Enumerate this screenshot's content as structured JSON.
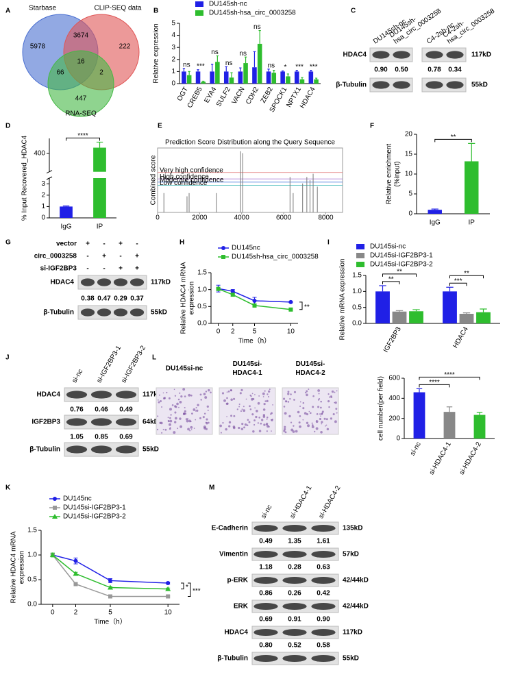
{
  "panels": [
    {
      "type": "venn",
      "label": "A",
      "sets": [
        {
          "name": "Starbase",
          "color": "#4a6fd1"
        },
        {
          "name": "CLIP-SEQ data",
          "color": "#e05555"
        },
        {
          "name": "RNA-SEQ",
          "color": "#44b844"
        }
      ],
      "values": [
        5978,
        3674,
        222,
        66,
        16,
        2,
        447
      ]
    },
    {
      "type": "bar",
      "label": "B",
      "ylabel": "Relative expression",
      "categories": [
        "OGT",
        "CREB5",
        "EYA4",
        "SULF2",
        "VACN",
        "CDH2",
        "ZEB2",
        "SPOCK1",
        "NPTX1",
        "HDAC4"
      ],
      "ylim": [
        0,
        5
      ],
      "yticks": [
        0,
        1,
        2,
        3,
        4,
        5
      ],
      "series": [
        {
          "name": "DU145sh-nc",
          "color": "#2020e6",
          "values": [
            1,
            1,
            1,
            1,
            1,
            1.35,
            1,
            1,
            1,
            1
          ],
          "errors": [
            0.25,
            0.15,
            0.6,
            0.4,
            0.3,
            1.3,
            0.2,
            0.05,
            0.1,
            0.1
          ]
        },
        {
          "name": "DU145sh-hsa_circ_0003258",
          "color": "#2ebd2e",
          "values": [
            0.7,
            0.15,
            1.8,
            0.5,
            1.7,
            3.3,
            0.9,
            0.6,
            0.35,
            0.35
          ],
          "errors": [
            0.3,
            0.05,
            0.5,
            0.4,
            0.5,
            1.1,
            0.2,
            0.2,
            0.15,
            0.1
          ]
        }
      ],
      "sig": [
        "ns",
        "***",
        "ns",
        "ns",
        "ns",
        "ns",
        "ns",
        "*",
        "***",
        "***"
      ]
    },
    {
      "type": "blot",
      "label": "C",
      "columns": [
        [
          "DU145sh-nc"
        ],
        [
          "DU145sh-",
          "hsa_circ_0003258"
        ],
        [
          "C4-2sh-nc"
        ],
        [
          "C4-2sh-",
          "hsa_circ_0003258"
        ]
      ],
      "rows": [
        {
          "name": "HDAC4",
          "values": [
            "0.90",
            "0.50",
            "0.78",
            "0.34"
          ],
          "size": "117kD"
        },
        {
          "name": "β-Tubulin",
          "size": "55kD"
        }
      ]
    },
    {
      "type": "bar",
      "label": "D",
      "ylabel": "% Input Recovered_HDAC4",
      "categories": [
        "IgG",
        "IP"
      ],
      "values": [
        1,
        430
      ],
      "errors": [
        0.05,
        30
      ],
      "colors": [
        "#2020e6",
        "#2ebd2e"
      ],
      "ylim": [
        0,
        480
      ],
      "break": [
        3.5,
        300
      ],
      "yticks": [
        0,
        1,
        2,
        3,
        400
      ],
      "sig": [
        "****"
      ]
    },
    {
      "type": "spikes",
      "label": "E",
      "title": "Prediction Score Distribution along the Query Sequence",
      "ylabel": "Combined score",
      "xlim": [
        0,
        8800
      ],
      "ylim": [
        0,
        1
      ],
      "xticks": [
        0,
        2000,
        4000,
        6000,
        8000
      ],
      "x": [
        300,
        1400,
        1500,
        2800,
        3950,
        4050,
        6300,
        6450,
        6900,
        7100,
        7250,
        7400,
        7600
      ],
      "values": [
        0.3,
        0.25,
        0.3,
        0.3,
        0.95,
        0.92,
        0.55,
        0.3,
        0.45,
        0.55,
        0.5,
        0.6,
        0.4
      ],
      "thresholds": [
        {
          "name": "Very high confidence",
          "color": "#e07070",
          "value": 0.62
        },
        {
          "name": "High confidence",
          "color": "#a070d0",
          "value": 0.52
        },
        {
          "name": "Moderate confidence",
          "color": "#5080e0",
          "value": 0.47
        },
        {
          "name": "Low confidence",
          "color": "#40b8b8",
          "value": 0.42
        }
      ]
    },
    {
      "type": "bar",
      "label": "F",
      "ylabel": [
        "Relative enrichment",
        "(%input)"
      ],
      "categories": [
        "IgG",
        "IP"
      ],
      "values": [
        1,
        13.2
      ],
      "errors": [
        0.2,
        4.5
      ],
      "colors": [
        "#2020e6",
        "#2ebd2e"
      ],
      "ylim": [
        0,
        20
      ],
      "yticks": [
        0,
        5,
        10,
        15,
        20
      ],
      "sig": [
        "**"
      ]
    },
    {
      "type": "blot",
      "label": "G",
      "conditions": [
        {
          "name": "vector",
          "signs": [
            "+",
            "-",
            "+",
            "-"
          ]
        },
        {
          "name": "circ_0003258",
          "signs": [
            "-",
            "+",
            "-",
            "+"
          ]
        },
        {
          "name": "si-IGF2BP3",
          "signs": [
            "-",
            "-",
            "+",
            "+"
          ]
        }
      ],
      "rows": [
        {
          "name": "HDAC4",
          "values": [
            "0.38",
            "0.47",
            "0.29",
            "0.37"
          ],
          "size": "117kD"
        },
        {
          "name": "β-Tubulin",
          "size": "55kD"
        }
      ]
    },
    {
      "type": "line",
      "label": "H",
      "ylabel": [
        "Relative HDAC4 mRNA",
        "expression"
      ],
      "xlabel": "Time（h）",
      "x": [
        0,
        2,
        5,
        10
      ],
      "xlim": [
        -1,
        11
      ],
      "xticks": [
        0,
        2,
        5,
        10
      ],
      "ylim": [
        0,
        1.5
      ],
      "yticks": [
        {
          "value": 0,
          "label": "0.0"
        },
        {
          "value": 0.5,
          "label": "0.5"
        },
        {
          "value": 1,
          "label": "1.0"
        },
        {
          "value": 1.5,
          "label": "1.5"
        }
      ],
      "series": [
        {
          "name": "DU145nc",
          "color": "#2020e6",
          "marker": "circle",
          "values": [
            1.03,
            0.95,
            0.67,
            0.63
          ],
          "errors": [
            0.1,
            0.05,
            0.1,
            0.02
          ]
        },
        {
          "name": "DU145sh-hsa_circ_0003258",
          "color": "#2ebd2e",
          "marker": "square",
          "values": [
            1.02,
            0.85,
            0.53,
            0.41
          ],
          "errors": [
            0.05,
            0.05,
            0.05,
            0.03
          ]
        }
      ],
      "sig": [
        "**"
      ]
    },
    {
      "type": "bar",
      "label": "I",
      "ylabel": "Relative mRNA expression",
      "categories": [
        "IGF2BP3",
        "HDAC4"
      ],
      "ylim": [
        0,
        1.5
      ],
      "yticks": [
        {
          "value": 0,
          "label": "0.0"
        },
        {
          "value": 0.5,
          "label": "0.5"
        },
        {
          "value": 1,
          "label": "1.0"
        },
        {
          "value": 1.5,
          "label": "1.5"
        }
      ],
      "series": [
        {
          "name": "DU145si-nc",
          "color": "#2020e6",
          "values": [
            1.0,
            1.0
          ],
          "errors": [
            0.18,
            0.13
          ]
        },
        {
          "name": "DU145si-IGF2BP3-1",
          "color": "#888888",
          "values": [
            0.37,
            0.3
          ],
          "errors": [
            0.03,
            0.03
          ]
        },
        {
          "name": "DU145si-IGF2BP3-2",
          "color": "#2ebd2e",
          "values": [
            0.38,
            0.35
          ],
          "errors": [
            0.05,
            0.1
          ]
        }
      ],
      "sig": [
        "**",
        "**",
        "***",
        "**"
      ]
    },
    {
      "type": "blot",
      "label": "J",
      "columns": [
        "si-nc",
        "si-IGF2BP3-1",
        "si-IGF2BP3-2"
      ],
      "rows": [
        {
          "name": "HDAC4",
          "values": [
            "0.76",
            "0.46",
            "0.49"
          ],
          "size": "117kD"
        },
        {
          "name": "IGF2BP3",
          "values": [
            "1.05",
            "0.85",
            "0.69"
          ],
          "size": "64kD"
        },
        {
          "name": "β-Tubulin",
          "size": "55kD"
        }
      ]
    },
    {
      "type": "bar",
      "label": "L",
      "images": [
        [
          "DU145si-nc"
        ],
        [
          "DU145si-",
          "HDAC4-1"
        ],
        [
          "DU145si-",
          "HDAC4-2"
        ]
      ],
      "ylabel": "cell number(per field)",
      "categories": [
        "si-nc",
        "si-HDAC4-1",
        "si-HDAC4-2"
      ],
      "values": [
        460,
        265,
        235
      ],
      "errors": [
        35,
        50,
        25
      ],
      "colors": [
        "#2020e6",
        "#888888",
        "#2ebd2e"
      ],
      "ylim": [
        0,
        600
      ],
      "yticks": [
        0,
        200,
        400,
        600
      ],
      "sig": [
        "****",
        "****"
      ]
    },
    {
      "type": "line",
      "label": "K",
      "ylabel": [
        "Relative HDAC4 mRNA",
        "expression"
      ],
      "xlabel": "Time（h）",
      "x": [
        0,
        2,
        5,
        10
      ],
      "xlim": [
        -1,
        11
      ],
      "xticks": [
        0,
        2,
        5,
        10
      ],
      "ylim": [
        0,
        1.5
      ],
      "yticks": [
        {
          "value": 0,
          "label": "0.0"
        },
        {
          "value": 0.5,
          "label": "0.5"
        },
        {
          "value": 1,
          "label": "1.0"
        },
        {
          "value": 1.5,
          "label": "1.5"
        }
      ],
      "series": [
        {
          "name": "DU145nc",
          "color": "#2020e6",
          "marker": "circle",
          "values": [
            1.0,
            0.88,
            0.48,
            0.43
          ],
          "errors": [
            0.03,
            0.06,
            0.04,
            0.02
          ]
        },
        {
          "name": "DU145si-IGF2BP3-1",
          "color": "#999999",
          "marker": "square",
          "values": [
            1.0,
            0.41,
            0.16,
            0.16
          ],
          "errors": [
            0.03,
            0.02,
            0.02,
            0.01
          ]
        },
        {
          "name": "DU145si-IGF2BP3-2",
          "color": "#2ebd2e",
          "marker": "triangle",
          "values": [
            1.0,
            0.62,
            0.34,
            0.31
          ],
          "errors": [
            0.04,
            0.03,
            0.02,
            0.02
          ]
        }
      ],
      "sig": [
        "*",
        "***"
      ]
    },
    {
      "type": "blot",
      "label": "M",
      "columns": [
        "si-nc",
        "si-HDAC4-1",
        "si-HDAC4-2"
      ],
      "rows": [
        {
          "name": "E-Cadherin",
          "values": [
            "0.49",
            "1.35",
            "1.61"
          ],
          "size": "135kD"
        },
        {
          "name": "Vimentin",
          "values": [
            "1.18",
            "0.28",
            "0.63"
          ],
          "size": "57kD"
        },
        {
          "name": "p-ERK",
          "values": [
            "0.86",
            "0.26",
            "0.42"
          ],
          "size": "42/44kD"
        },
        {
          "name": "ERK",
          "values": [
            "0.69",
            "0.91",
            "0.90"
          ],
          "size": "42/44kD"
        },
        {
          "name": "HDAC4",
          "values": [
            "0.80",
            "0.52",
            "0.58"
          ],
          "size": "117kD"
        },
        {
          "name": "β-Tubulin",
          "size": "55kD"
        }
      ]
    }
  ]
}
